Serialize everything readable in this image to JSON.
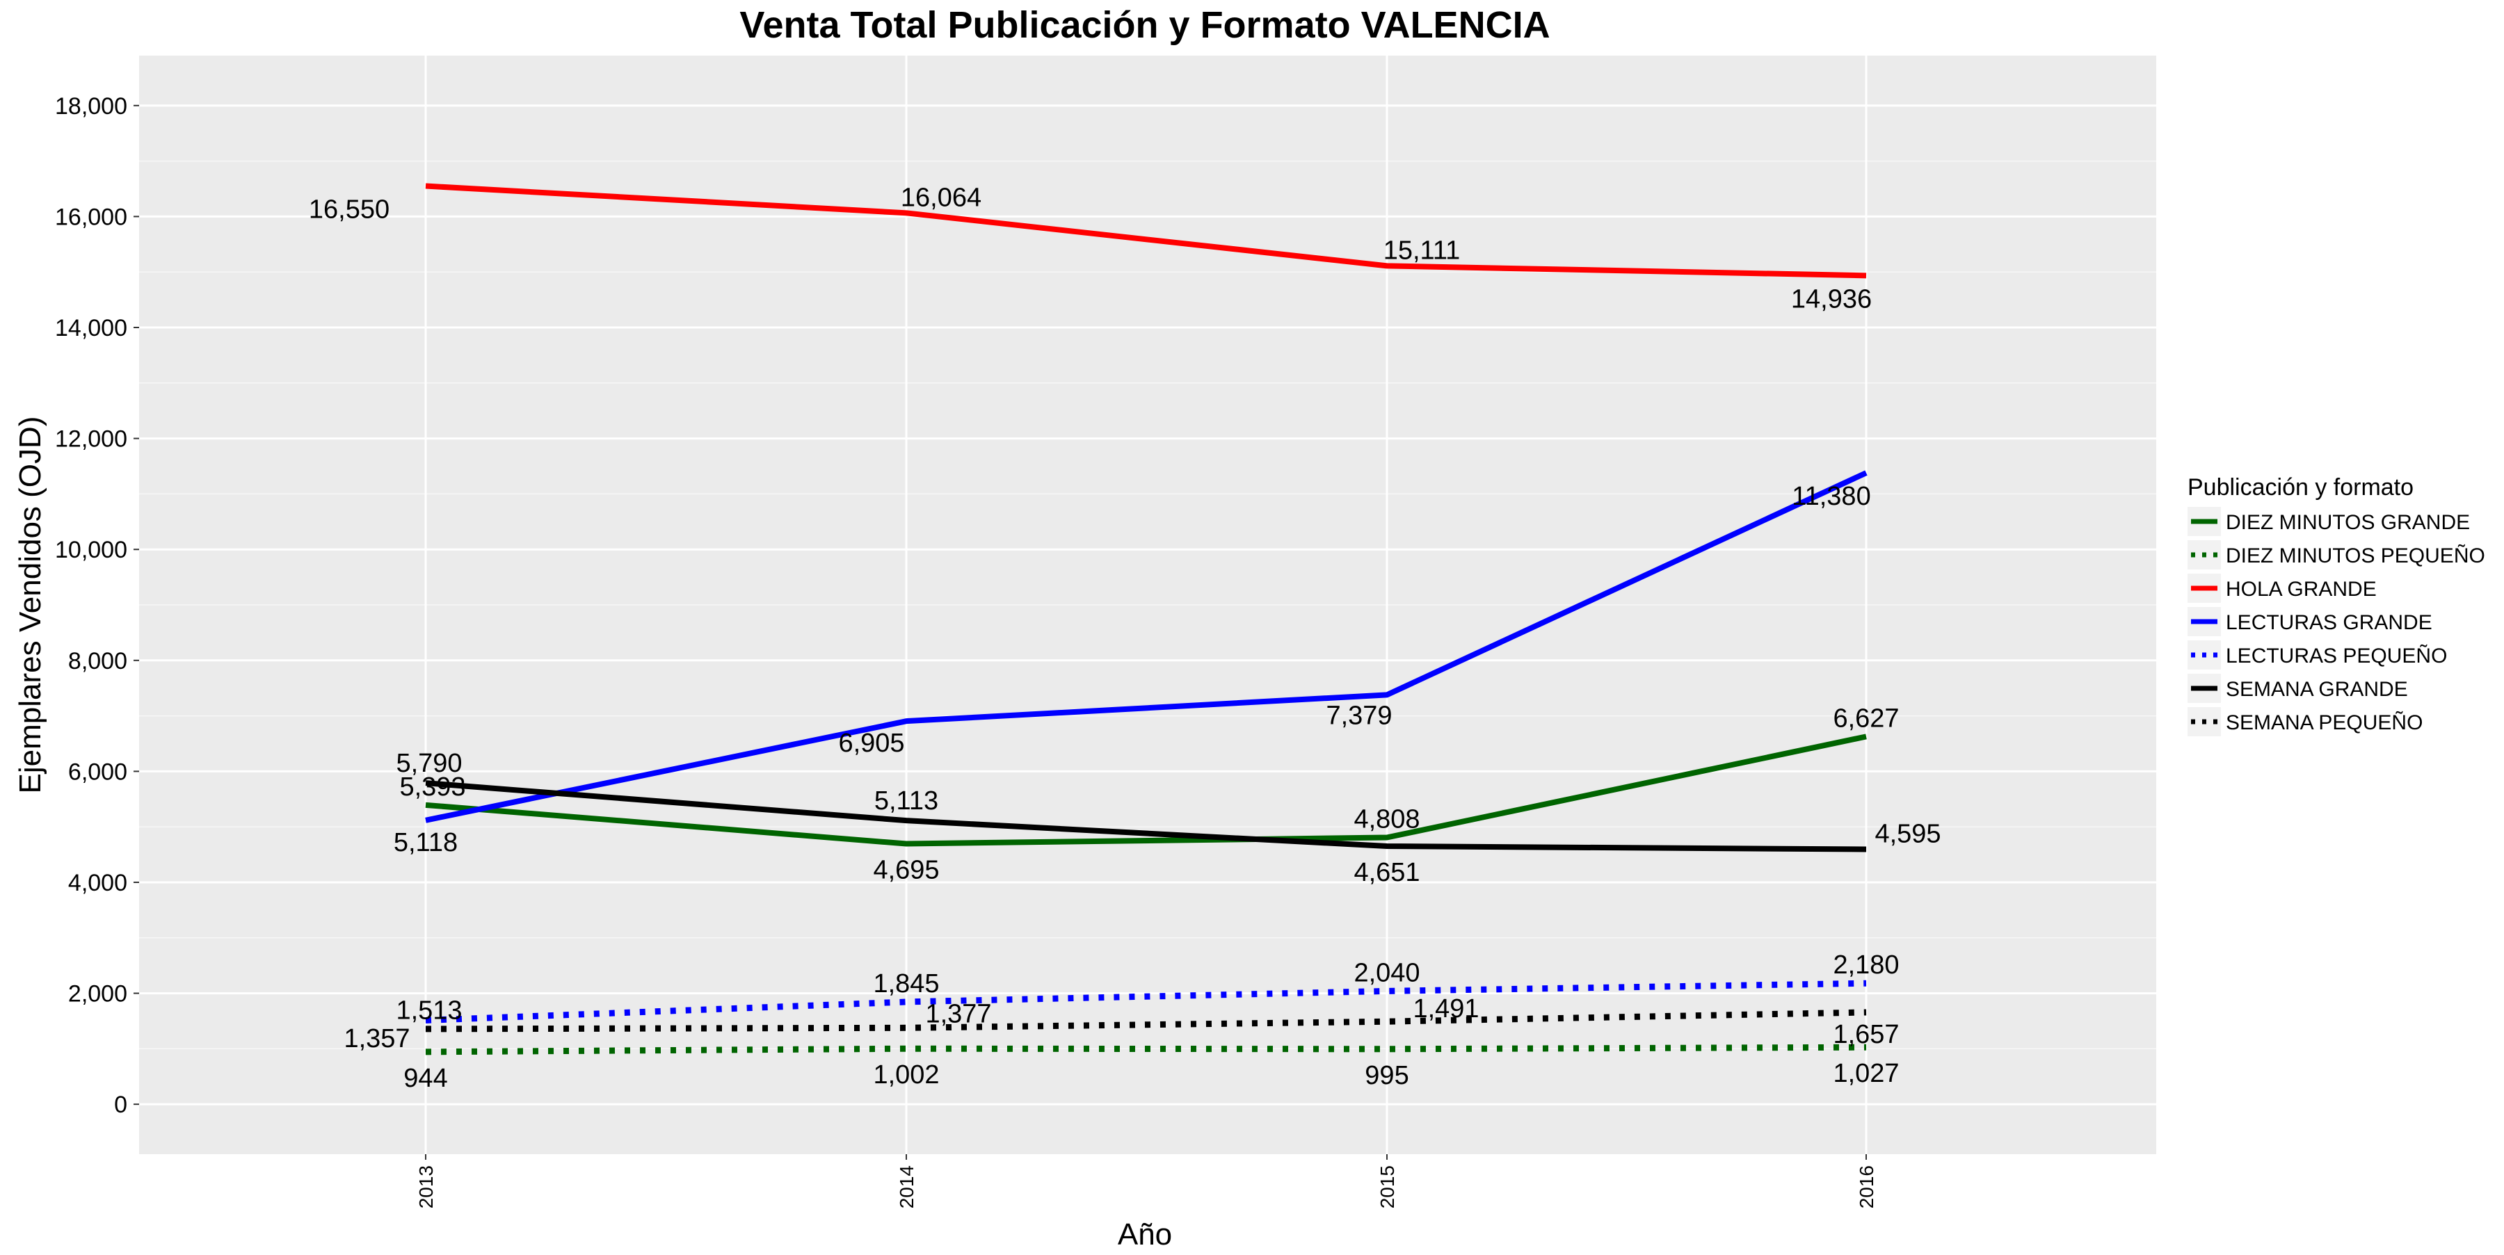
{
  "chart_data": {
    "type": "line",
    "title": "Venta Total Publicación y Formato  VALENCIA",
    "xlabel": "Año",
    "ylabel": "Ejemplares Vendidos (OJD)",
    "x": [
      "2013",
      "2014",
      "2015",
      "2016"
    ],
    "ylim": [
      -900,
      18900
    ],
    "yticks": [
      0,
      2000,
      4000,
      6000,
      8000,
      10000,
      12000,
      14000,
      16000,
      18000
    ],
    "ytick_labels": [
      "0",
      "2,000",
      "4,000",
      "6,000",
      "8,000",
      "10,000",
      "12,000",
      "14,000",
      "16,000",
      "18,000"
    ],
    "grid": true,
    "legend": {
      "title": "Publicación y formato",
      "position": "right"
    },
    "series": [
      {
        "name": "DIEZ MINUTOS GRANDE",
        "color": "#006400",
        "dash": "solid",
        "values": [
          5393,
          4695,
          4808,
          6627
        ],
        "labels": [
          "5,393",
          "4,695",
          "4,808",
          "6,627"
        ]
      },
      {
        "name": "DIEZ MINUTOS PEQUEÑO",
        "color": "#006400",
        "dash": "dotted",
        "values": [
          944,
          1002,
          995,
          1027
        ],
        "labels": [
          "944",
          "1,002",
          "995",
          "1,027"
        ]
      },
      {
        "name": "HOLA GRANDE",
        "color": "#ff0000",
        "dash": "solid",
        "values": [
          16550,
          16064,
          15111,
          14936
        ],
        "labels": [
          "16,550",
          "16,064",
          "15,111",
          "14,936"
        ]
      },
      {
        "name": "LECTURAS GRANDE",
        "color": "#0000ff",
        "dash": "solid",
        "values": [
          5118,
          6905,
          7379,
          11380
        ],
        "labels": [
          "5,118",
          "6,905",
          "7,379",
          "11,380"
        ]
      },
      {
        "name": "LECTURAS PEQUEÑO",
        "color": "#0000ff",
        "dash": "dotted",
        "values": [
          1513,
          1845,
          2040,
          2180
        ],
        "labels": [
          "1,513",
          "1,845",
          "2,040",
          "2,180"
        ]
      },
      {
        "name": "SEMANA GRANDE",
        "color": "#000000",
        "dash": "solid",
        "values": [
          5790,
          5113,
          4651,
          4595
        ],
        "labels": [
          "5,790",
          "5,113",
          "4,651",
          "4,595"
        ]
      },
      {
        "name": "SEMANA PEQUEÑO",
        "color": "#000000",
        "dash": "dotted",
        "values": [
          1357,
          1377,
          1491,
          1657
        ],
        "labels": [
          "1,357",
          "1,377",
          "1,491",
          "1,657"
        ]
      }
    ]
  }
}
